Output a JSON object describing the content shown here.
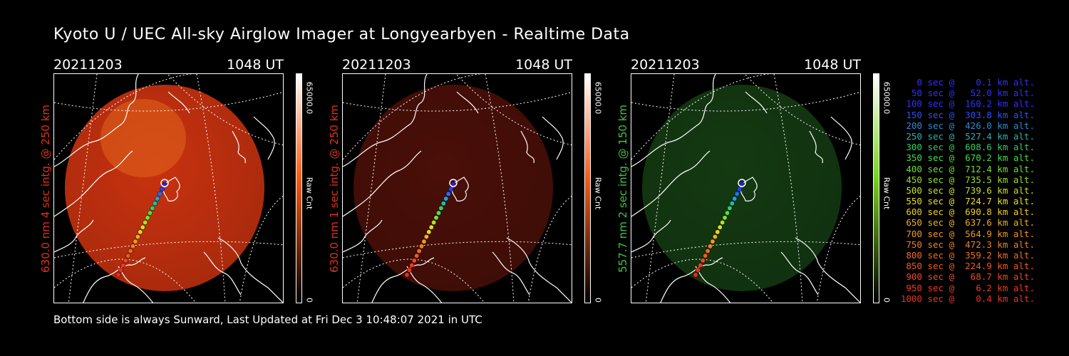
{
  "header": {
    "title": "Kyoto U / UEC All-sky Airglow Imager at Longyearbyen - Realtime Data"
  },
  "panels": [
    {
      "date": "20211203",
      "time": "1048 UT",
      "side_label": "630.0 nm 4 sec intg. @ 250 km",
      "side_label_color": "#e0301a",
      "colorbar_top": "65000.0",
      "colorbar_bottom": "0",
      "colorbar_unit": "Raw Cnt",
      "colorbar_color": "#ff5a14",
      "glow_color": "#c8320f",
      "glow_brightness": 1.0
    },
    {
      "date": "20211203",
      "time": "1048 UT",
      "side_label": "630.0 nm 1 sec intg. @ 250 km",
      "side_label_color": "#e0301a",
      "colorbar_top": "65000.0",
      "colorbar_bottom": "0",
      "colorbar_unit": "Raw Cnt",
      "colorbar_color": "#ff5a14",
      "glow_color": "#4a0f08",
      "glow_brightness": 0.35
    },
    {
      "date": "20211203",
      "time": "1048 UT",
      "side_label": "557.7 nm 2 sec intg. @ 150 km",
      "side_label_color": "#3ec43e",
      "colorbar_top": "65000.0",
      "colorbar_bottom": "0",
      "colorbar_unit": "Raw Cnt",
      "colorbar_color": "#7ad21e",
      "glow_color": "#143a12",
      "glow_brightness": 0.3
    }
  ],
  "footer": {
    "text": "Bottom side is always Sunward, Last Updated at Fri Dec  3 10:48:07 2021 in UTC"
  },
  "legend": [
    {
      "text": "   0 sec @    0.1 km alt.",
      "color": "#3030ff"
    },
    {
      "text": "  50 sec @   52.0 km alt.",
      "color": "#3030ff"
    },
    {
      "text": " 100 sec @  160.2 km alt.",
      "color": "#3030ff"
    },
    {
      "text": " 150 sec @  303.8 km alt.",
      "color": "#2e50ff"
    },
    {
      "text": " 200 sec @  426.0 km alt.",
      "color": "#2a8ad8"
    },
    {
      "text": " 250 sec @  527.4 km alt.",
      "color": "#2fb0b0"
    },
    {
      "text": " 300 sec @  608.6 km alt.",
      "color": "#2ed060"
    },
    {
      "text": " 350 sec @  670.2 km alt.",
      "color": "#40e040"
    },
    {
      "text": " 400 sec @  712.4 km alt.",
      "color": "#6ae030"
    },
    {
      "text": " 450 sec @  735.5 km alt.",
      "color": "#98e028"
    },
    {
      "text": " 500 sec @  739.6 km alt.",
      "color": "#c8e020"
    },
    {
      "text": " 550 sec @  724.7 km alt.",
      "color": "#e8e020"
    },
    {
      "text": " 600 sec @  690.8 km alt.",
      "color": "#f0d020"
    },
    {
      "text": " 650 sec @  637.6 km alt.",
      "color": "#f0b020"
    },
    {
      "text": " 700 sec @  564.9 km alt.",
      "color": "#f09820"
    },
    {
      "text": " 750 sec @  472.3 km alt.",
      "color": "#f08020"
    },
    {
      "text": " 800 sec @  359.2 km alt.",
      "color": "#f06c20"
    },
    {
      "text": " 850 sec @  224.9 km alt.",
      "color": "#f05a20"
    },
    {
      "text": " 900 sec @   68.7 km alt.",
      "color": "#f04820"
    },
    {
      "text": " 950 sec @    6.2 km alt.",
      "color": "#f03a20"
    },
    {
      "text": "1000 sec @    0.4 km alt.",
      "color": "#f03020"
    }
  ]
}
